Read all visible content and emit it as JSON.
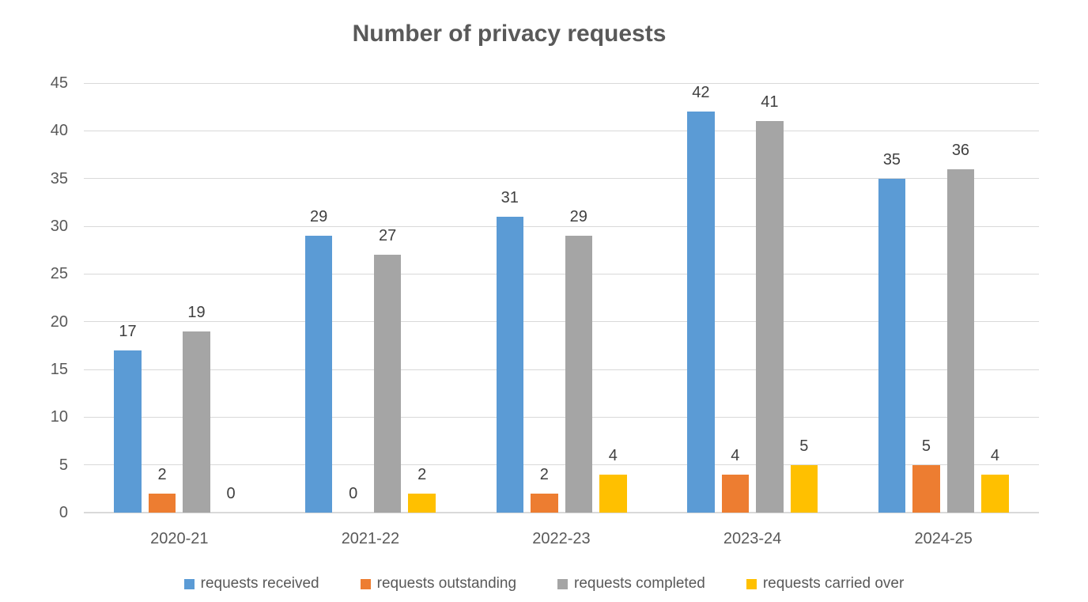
{
  "title": "Number of privacy requests",
  "chart_data": {
    "type": "bar",
    "title": "Number of privacy requests",
    "categories": [
      "2020-21",
      "2021-22",
      "2022-23",
      "2023-24",
      "2024-25"
    ],
    "series": [
      {
        "name": "requests received",
        "color": "#5B9BD5",
        "values": [
          17,
          29,
          31,
          42,
          35
        ]
      },
      {
        "name": "requests outstanding",
        "color": "#ED7D31",
        "values": [
          2,
          0,
          2,
          4,
          5
        ]
      },
      {
        "name": "requests completed",
        "color": "#A5A5A5",
        "values": [
          19,
          27,
          29,
          41,
          36
        ]
      },
      {
        "name": "requests carried over",
        "color": "#FFC000",
        "values": [
          0,
          2,
          4,
          5,
          4
        ]
      }
    ],
    "ylim": [
      0,
      45
    ],
    "yticks": [
      0,
      5,
      10,
      15,
      20,
      25,
      30,
      35,
      40,
      45
    ],
    "xlabel": "",
    "ylabel": "",
    "grid": "horizontal",
    "legend_position": "bottom",
    "data_labels": true
  },
  "colors": {
    "background": "#FFFFFF",
    "gridline": "#D9D9D9",
    "axis_line": "#D9D9D9",
    "title_text": "#595959",
    "tick_text": "#595959",
    "data_label_text": "#404040",
    "legend_text": "#595959"
  }
}
